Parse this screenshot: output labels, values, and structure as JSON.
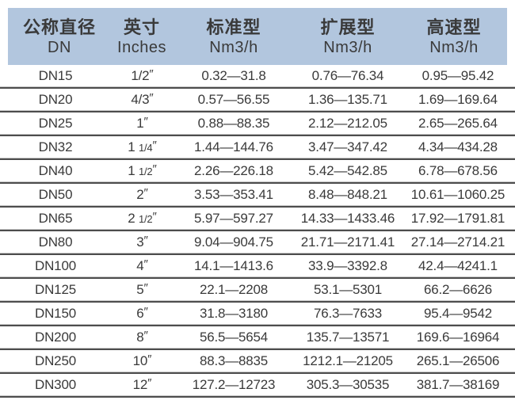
{
  "table": {
    "columns": [
      {
        "zh": "公称直径",
        "sub": "DN"
      },
      {
        "zh": "英寸",
        "sub": "Inches"
      },
      {
        "zh": "标准型",
        "sub": "Nm3/h"
      },
      {
        "zh": "扩展型",
        "sub": "Nm3/h"
      },
      {
        "zh": "高速型",
        "sub": "Nm3/h"
      }
    ],
    "rows": [
      {
        "dn": "DN15",
        "inches": "1/2\"",
        "standard": "0.32—31.8",
        "extended": "0.76—76.34",
        "high_speed": "0.95—95.42"
      },
      {
        "dn": "DN20",
        "inches": "4/3\"",
        "standard": "0.57—56.55",
        "extended": "1.36—135.71",
        "high_speed": "1.69—169.64"
      },
      {
        "dn": "DN25",
        "inches": "1\"",
        "standard": "0.88—88.35",
        "extended": "2.12—212.05",
        "high_speed": "2.65—265.64"
      },
      {
        "dn": "DN32",
        "inches": "1 1/4\"",
        "standard": "1.44—144.76",
        "extended": "3.47—347.42",
        "high_speed": "4.34—434.28"
      },
      {
        "dn": "DN40",
        "inches": "1 1/2\"",
        "standard": "2.26—226.18",
        "extended": "5.42—542.85",
        "high_speed": "6.78—678.56"
      },
      {
        "dn": "DN50",
        "inches": "2\"",
        "standard": "3.53—353.41",
        "extended": "8.48—848.21",
        "high_speed": "10.61—1060.25"
      },
      {
        "dn": "DN65",
        "inches": "2 1/2\"",
        "standard": "5.97—597.27",
        "extended": "14.33—1433.46",
        "high_speed": "17.92—1791.81"
      },
      {
        "dn": "DN80",
        "inches": "3\"",
        "standard": "9.04—904.75",
        "extended": "21.71—2171.41",
        "high_speed": "27.14—2714.21"
      },
      {
        "dn": "DN100",
        "inches": "4\"",
        "standard": "14.1—1413.6",
        "extended": "33.9—3392.8",
        "high_speed": "42.4—4241.1"
      },
      {
        "dn": "DN125",
        "inches": "5\"",
        "standard": "22.1—2208",
        "extended": "53.1—5301",
        "high_speed": "66.2—6626"
      },
      {
        "dn": "DN150",
        "inches": "6\"",
        "standard": "31.8—3180",
        "extended": "76.3—7633",
        "high_speed": "95.4—9542"
      },
      {
        "dn": "DN200",
        "inches": "8\"",
        "standard": "56.5—5654",
        "extended": "135.7—13571",
        "high_speed": "169.6—16964"
      },
      {
        "dn": "DN250",
        "inches": "10\"",
        "standard": "88.3—8835",
        "extended": "1212.1—21205",
        "high_speed": "265.1—26506"
      },
      {
        "dn": "DN300",
        "inches": "12\"",
        "standard": "127.2—12723",
        "extended": "305.3—30535",
        "high_speed": "381.7—38169"
      }
    ]
  },
  "colors": {
    "header_bg": "#b2c6de",
    "text": "#3a3a3a",
    "separator_dark": "#4d4d4d",
    "separator_light": "#c8c8c8"
  }
}
